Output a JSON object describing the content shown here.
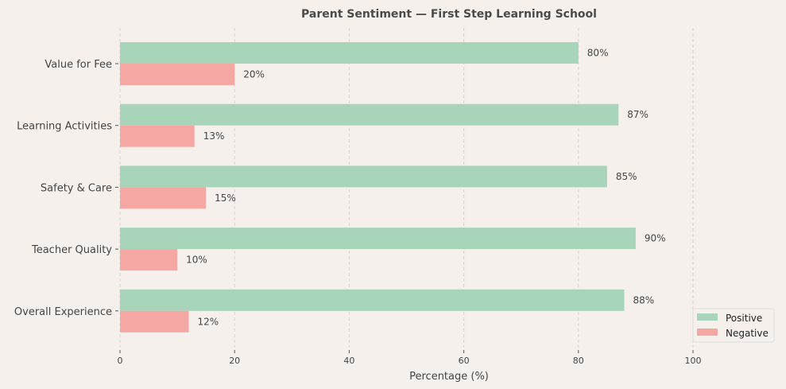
{
  "chart_data": {
    "type": "bar",
    "orientation": "horizontal",
    "title": "Parent Sentiment — First Step Learning School",
    "xlabel": "Percentage (%)",
    "ylabel": "",
    "categories": [
      "Value for Fee",
      "Learning Activities",
      "Safety & Care",
      "Teacher Quality",
      "Overall Experience"
    ],
    "series": [
      {
        "name": "Positive",
        "values": [
          80,
          87,
          85,
          90,
          88
        ],
        "color": "#a8d5ba"
      },
      {
        "name": "Negative",
        "values": [
          20,
          13,
          15,
          10,
          12
        ],
        "color": "#f5a7a3"
      }
    ],
    "data_label_suffix": "%",
    "xticks": [
      "0",
      "20",
      "40",
      "60",
      "80",
      "100"
    ],
    "xlim": [
      0,
      114
    ],
    "grid": "x-dashed",
    "legend": "bottom-right",
    "background": "#f5f0ec"
  }
}
